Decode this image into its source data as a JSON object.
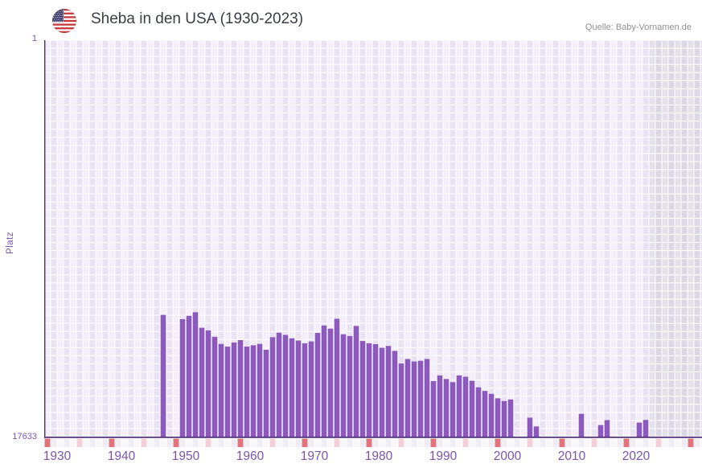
{
  "header": {
    "title": "Sheba in den USA (1930-2023)",
    "source": "Quelle: Baby-Vornamen.de",
    "flag_icon": "us-flag"
  },
  "y_axis": {
    "label": "Platz",
    "top_tick": "1",
    "bottom_tick": "17633"
  },
  "x_axis": {
    "ticks": [
      "1930",
      "1940",
      "1950",
      "1960",
      "1970",
      "1980",
      "1990",
      "2000",
      "2010",
      "2020"
    ],
    "tick_start_year": 1930,
    "tick_step_years": 10
  },
  "colors": {
    "bar": "#8b5abc",
    "axis_line": "#4e2d7e",
    "tick_text": "#7b55ab",
    "cell_light": "#f3eef9",
    "cell_dark": "#e9e2f2",
    "nodata_cell_light": "#e4e1eb",
    "nodata_cell_dark": "#dbd7e3",
    "strip_light": "#f8f6fb",
    "strip_dark": "#efecf5",
    "decade_mark": "#e2737b",
    "half_decade_mark": "#f3cfd8",
    "grid_line": "#ffffff"
  },
  "chart_data": {
    "type": "bar",
    "title": "Sheba in den USA (1930-2023)",
    "source": "Quelle: Baby-Vornamen.de",
    "xlabel": "",
    "ylabel": "Platz",
    "y_inverted": true,
    "ylim": [
      1,
      17633
    ],
    "xlim": [
      1930,
      2023
    ],
    "grid": true,
    "legend": null,
    "first_year": 1930,
    "last_data_year": 2023,
    "no_data_region_start": 2024,
    "series": [
      {
        "name": "Platz von Sheba in den USA",
        "points": [
          {
            "year": 1948,
            "rank": 12220
          },
          {
            "year": 1951,
            "rank": 12410
          },
          {
            "year": 1952,
            "rank": 12260
          },
          {
            "year": 1953,
            "rank": 12100
          },
          {
            "year": 1954,
            "rank": 12790
          },
          {
            "year": 1955,
            "rank": 12910
          },
          {
            "year": 1956,
            "rank": 13190
          },
          {
            "year": 1957,
            "rank": 13510
          },
          {
            "year": 1958,
            "rank": 13630
          },
          {
            "year": 1959,
            "rank": 13450
          },
          {
            "year": 1960,
            "rank": 13340
          },
          {
            "year": 1961,
            "rank": 13630
          },
          {
            "year": 1962,
            "rank": 13570
          },
          {
            "year": 1963,
            "rank": 13510
          },
          {
            "year": 1964,
            "rank": 13770
          },
          {
            "year": 1965,
            "rank": 13210
          },
          {
            "year": 1966,
            "rank": 13010
          },
          {
            "year": 1967,
            "rank": 13110
          },
          {
            "year": 1968,
            "rank": 13260
          },
          {
            "year": 1969,
            "rank": 13360
          },
          {
            "year": 1970,
            "rank": 13480
          },
          {
            "year": 1971,
            "rank": 13400
          },
          {
            "year": 1972,
            "rank": 13020
          },
          {
            "year": 1973,
            "rank": 12690
          },
          {
            "year": 1974,
            "rank": 12830
          },
          {
            "year": 1975,
            "rank": 12390
          },
          {
            "year": 1976,
            "rank": 13080
          },
          {
            "year": 1977,
            "rank": 13160
          },
          {
            "year": 1978,
            "rank": 12710
          },
          {
            "year": 1979,
            "rank": 13380
          },
          {
            "year": 1980,
            "rank": 13480
          },
          {
            "year": 1981,
            "rank": 13520
          },
          {
            "year": 1982,
            "rank": 13680
          },
          {
            "year": 1983,
            "rank": 13600
          },
          {
            "year": 1984,
            "rank": 13820
          },
          {
            "year": 1985,
            "rank": 14380
          },
          {
            "year": 1986,
            "rank": 14180
          },
          {
            "year": 1987,
            "rank": 14290
          },
          {
            "year": 1988,
            "rank": 14260
          },
          {
            "year": 1989,
            "rank": 14180
          },
          {
            "year": 1990,
            "rank": 15160
          },
          {
            "year": 1991,
            "rank": 14910
          },
          {
            "year": 1992,
            "rank": 15070
          },
          {
            "year": 1993,
            "rank": 15210
          },
          {
            "year": 1994,
            "rank": 14910
          },
          {
            "year": 1995,
            "rank": 14970
          },
          {
            "year": 1996,
            "rank": 15150
          },
          {
            "year": 1997,
            "rank": 15440
          },
          {
            "year": 1998,
            "rank": 15600
          },
          {
            "year": 1999,
            "rank": 15730
          },
          {
            "year": 2000,
            "rank": 15930
          },
          {
            "year": 2001,
            "rank": 16050
          },
          {
            "year": 2002,
            "rank": 15980
          },
          {
            "year": 2005,
            "rank": 16790
          },
          {
            "year": 2006,
            "rank": 17180
          },
          {
            "year": 2013,
            "rank": 16620
          },
          {
            "year": 2016,
            "rank": 17120
          },
          {
            "year": 2017,
            "rank": 16900
          },
          {
            "year": 2022,
            "rank": 17010
          },
          {
            "year": 2023,
            "rank": 16890
          }
        ]
      }
    ]
  }
}
